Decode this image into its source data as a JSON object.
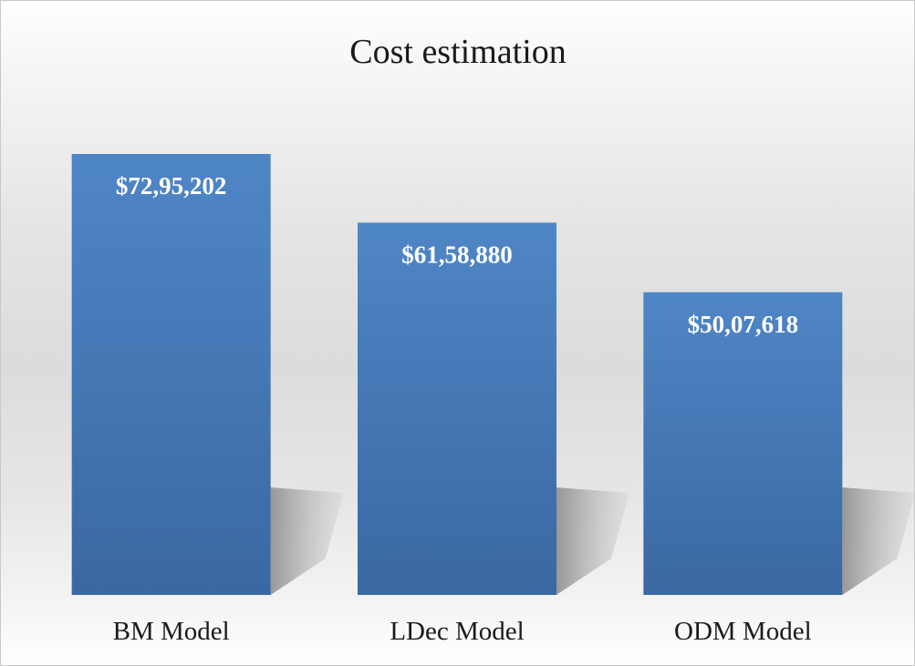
{
  "chart_data": {
    "type": "bar",
    "title": "Cost estimation",
    "categories": [
      "BM Model",
      "LDec Model",
      "ODM Model"
    ],
    "values": [
      7295202,
      6158880,
      5007618
    ],
    "value_labels": [
      "$72,95,202",
      "$61,58,880",
      "$50,07,618"
    ],
    "xlabel": "",
    "ylabel": "",
    "ylim": [
      0,
      8000000
    ],
    "grid": false,
    "legend": "none",
    "bar_color": "#4a7fbf"
  }
}
